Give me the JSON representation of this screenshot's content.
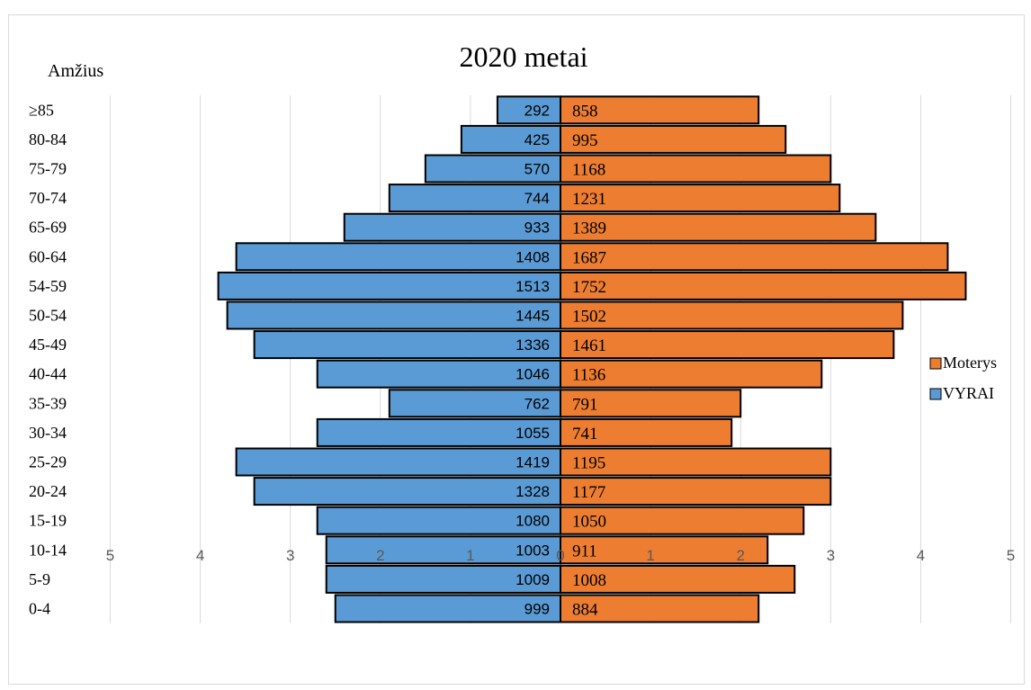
{
  "chart_data": {
    "type": "bar",
    "orientation": "horizontal",
    "title": "2020 metai",
    "ylabel": "Amžius",
    "xlabel": "",
    "categories": [
      "≥85",
      "80-84",
      "75-79",
      "70-74",
      "65-69",
      "60-64",
      "54-59",
      "50-54",
      "45-49",
      "40-44",
      "35-39",
      "30-34",
      "25-29",
      "20-24",
      "15-19",
      "10-14",
      "5-9",
      "0-4"
    ],
    "xticks": [
      "5",
      "4",
      "3",
      "2",
      "1",
      "0",
      "1",
      "2",
      "3",
      "4",
      "5"
    ],
    "xlim": [
      -5,
      5
    ],
    "grid": true,
    "legend_position": "right",
    "series": [
      {
        "name": "Moterys",
        "color": "#ED7D31",
        "direction": "right",
        "values": [
          2.2,
          2.5,
          3.0,
          3.1,
          3.5,
          4.3,
          4.5,
          3.8,
          3.7,
          2.9,
          2.0,
          1.9,
          3.0,
          3.0,
          2.7,
          2.3,
          2.6,
          2.2
        ],
        "labels": [
          "858",
          "995",
          "1168",
          "1231",
          "1389",
          "1687",
          "1752",
          "1502",
          "1461",
          "1136",
          "791",
          "741",
          "1195",
          "1177",
          "1050",
          "911",
          "1008",
          "884"
        ]
      },
      {
        "name": "VYRAI",
        "color": "#5B9BD5",
        "direction": "left",
        "values": [
          0.7,
          1.1,
          1.5,
          1.9,
          2.4,
          3.6,
          3.8,
          3.7,
          3.4,
          2.7,
          1.9,
          2.7,
          3.6,
          3.4,
          2.7,
          2.6,
          2.6,
          2.5
        ],
        "labels": [
          "292",
          "425",
          "570",
          "744",
          "933",
          "1408",
          "1513",
          "1445",
          "1336",
          "1046",
          "762",
          "1055",
          "1419",
          "1328",
          "1080",
          "1003",
          "1009",
          "999"
        ]
      }
    ]
  }
}
